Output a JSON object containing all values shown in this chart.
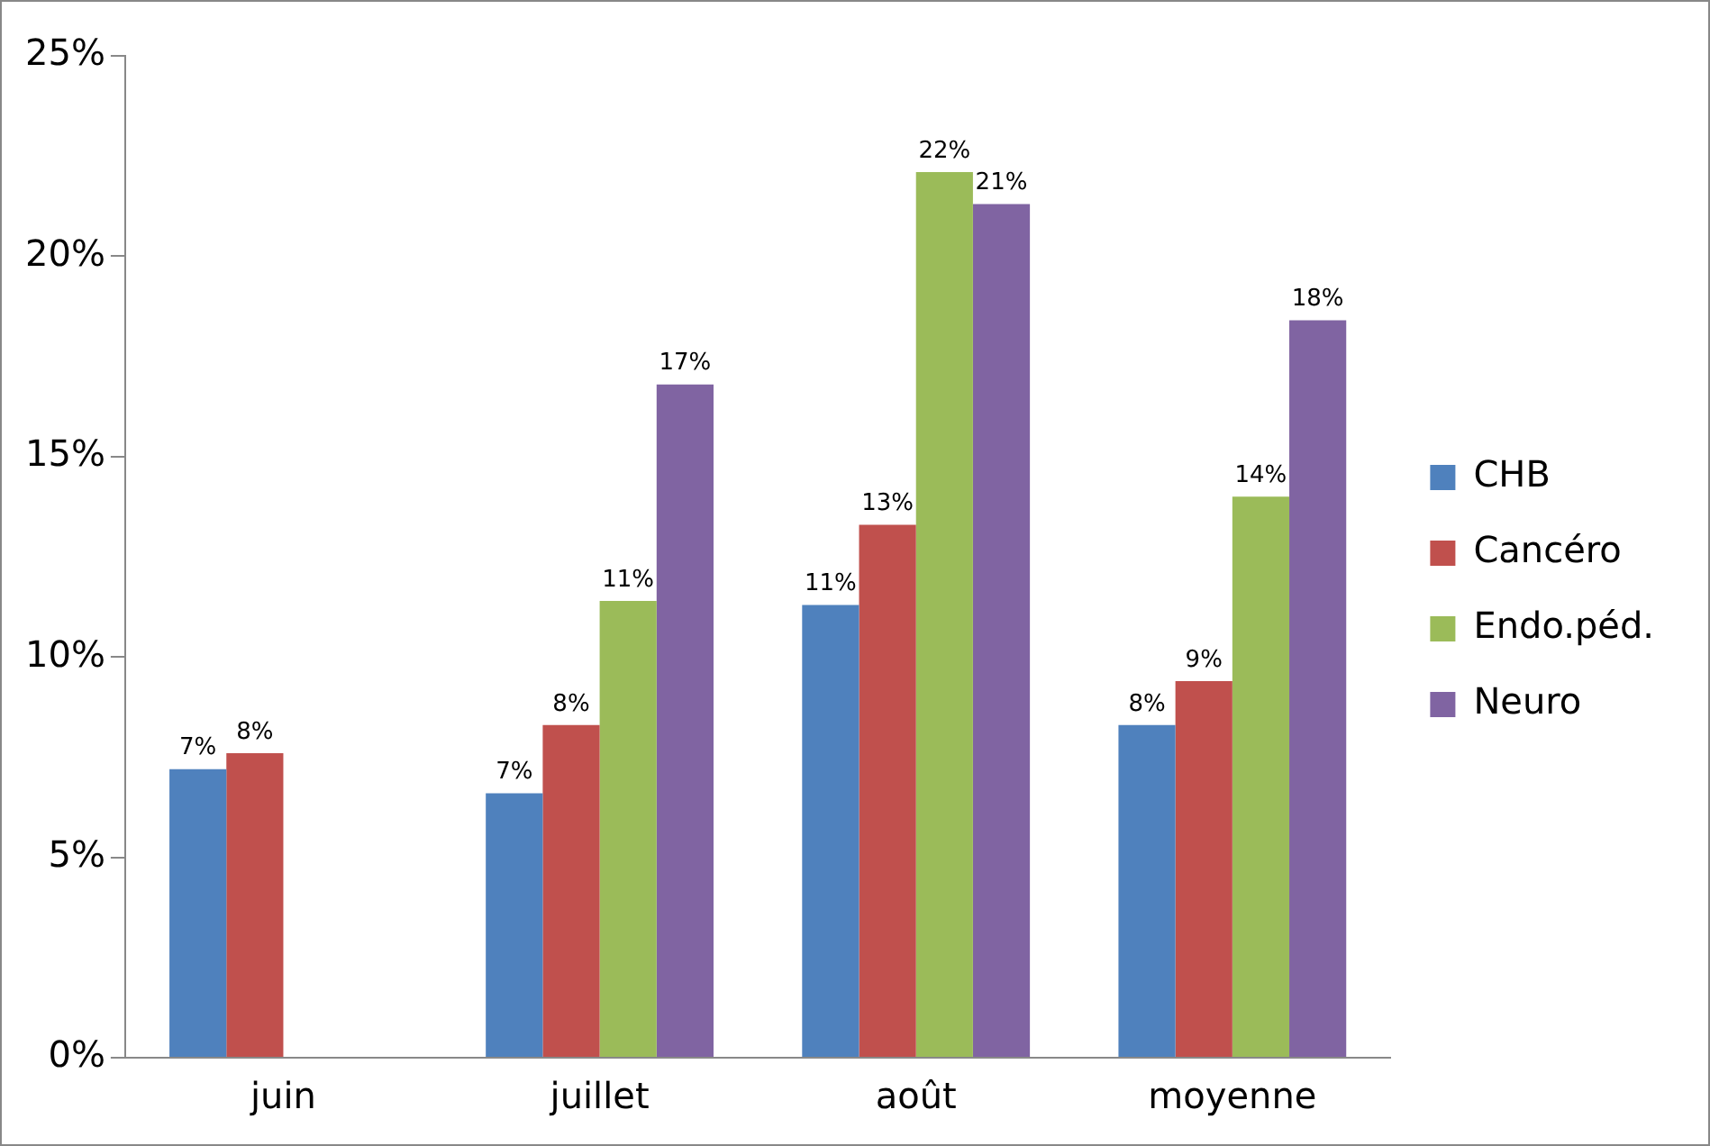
{
  "chart_data": {
    "type": "bar",
    "categories": [
      "juin",
      "juillet",
      "août",
      "moyenne"
    ],
    "series": [
      {
        "name": "CHB",
        "color": "#4f81bd",
        "values": [
          7.2,
          6.6,
          11.3,
          8.3
        ],
        "value_labels": [
          "7%",
          "7%",
          "11%",
          "8%"
        ]
      },
      {
        "name": "Cancéro",
        "color": "#c0504d",
        "values": [
          7.6,
          8.3,
          13.3,
          9.4
        ],
        "value_labels": [
          "8%",
          "8%",
          "13%",
          "9%"
        ]
      },
      {
        "name": "Endo.péd.",
        "color": "#9bbb59",
        "values": [
          null,
          11.4,
          22.1,
          14.0
        ],
        "value_labels": [
          null,
          "11%",
          "22%",
          "14%"
        ]
      },
      {
        "name": "Neuro",
        "color": "#8064a2",
        "values": [
          null,
          16.8,
          21.3,
          18.4
        ],
        "value_labels": [
          null,
          "17%",
          "21%",
          "18%"
        ]
      }
    ],
    "ylim": [
      0,
      25
    ],
    "yticks": [
      {
        "value": 0,
        "label": "0%"
      },
      {
        "value": 5,
        "label": "5%"
      },
      {
        "value": 10,
        "label": "10%"
      },
      {
        "value": 15,
        "label": "15%"
      },
      {
        "value": 20,
        "label": "20%"
      },
      {
        "value": 25,
        "label": "25%"
      }
    ],
    "grid": false,
    "legend": "right"
  }
}
